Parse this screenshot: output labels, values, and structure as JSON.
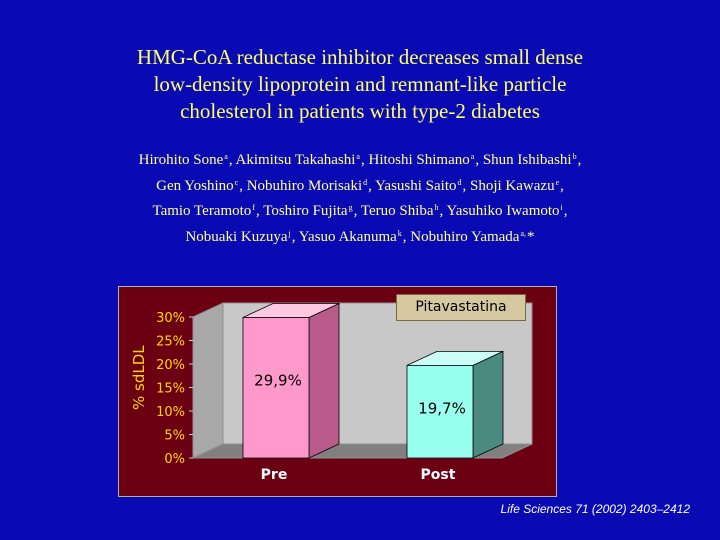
{
  "title": {
    "lines": [
      "HMG-CoA reductase inhibitor decreases small dense",
      "low-density lipoprotein and remnant-like particle",
      "cholesterol in patients with type-2 diabetes"
    ]
  },
  "authors": {
    "lines": [
      [
        {
          "name": "Hirohito Sone",
          "sup": "a",
          "sep": ", "
        },
        {
          "name": "Akimitsu Takahashi",
          "sup": "a",
          "sep": ", "
        },
        {
          "name": "Hitoshi Shimano",
          "sup": "a",
          "sep": ", "
        },
        {
          "name": "Shun Ishibashi",
          "sup": "b",
          "sep": ","
        }
      ],
      [
        {
          "name": "Gen Yoshino",
          "sup": "c",
          "sep": ", "
        },
        {
          "name": "Nobuhiro Morisaki",
          "sup": "d",
          "sep": ", "
        },
        {
          "name": "Yasushi Saito",
          "sup": "d",
          "sep": ", "
        },
        {
          "name": "Shoji Kawazu",
          "sup": "e",
          "sep": ","
        }
      ],
      [
        {
          "name": "Tamio Teramoto",
          "sup": "f",
          "sep": ", "
        },
        {
          "name": "Toshiro Fujita",
          "sup": "g",
          "sep": ", "
        },
        {
          "name": "Teruo Shiba",
          "sup": "h",
          "sep": ", "
        },
        {
          "name": "Yasuhiko Iwamoto",
          "sup": "i",
          "sep": ","
        }
      ],
      [
        {
          "name": "Nobuaki Kuzuya",
          "sup": "j",
          "sep": ", "
        },
        {
          "name": "Yasuo Akanuma",
          "sup": "k",
          "sep": ", "
        },
        {
          "name": "Nobuhiro Yamada",
          "sup": "a,",
          "sep": "*"
        }
      ]
    ]
  },
  "legend_label": "Pitavastatina",
  "citation": "Life Sciences 71 (2002) 2403–2412",
  "colors": {
    "background": "#0a0ab4",
    "title": "#ffff66",
    "plot_bg": "#6b0013",
    "wall": "#c8c8c8",
    "pre_bar": "#ff99cc",
    "post_bar": "#99ffee"
  },
  "chart_data": {
    "type": "bar",
    "ylabel": "% sdLDL",
    "xlabel": "",
    "categories": [
      "Pre",
      "Post"
    ],
    "values": [
      29.9,
      19.7
    ],
    "data_labels": [
      "29,9%",
      "19,7%"
    ],
    "yticks": [
      "0%",
      "5%",
      "10%",
      "15%",
      "20%",
      "25%",
      "30%"
    ],
    "ylim": [
      0,
      30
    ],
    "grid": false,
    "legend": "top-right",
    "series": [
      {
        "name": "Pitavastatina",
        "values": [
          29.9,
          19.7
        ]
      }
    ]
  }
}
